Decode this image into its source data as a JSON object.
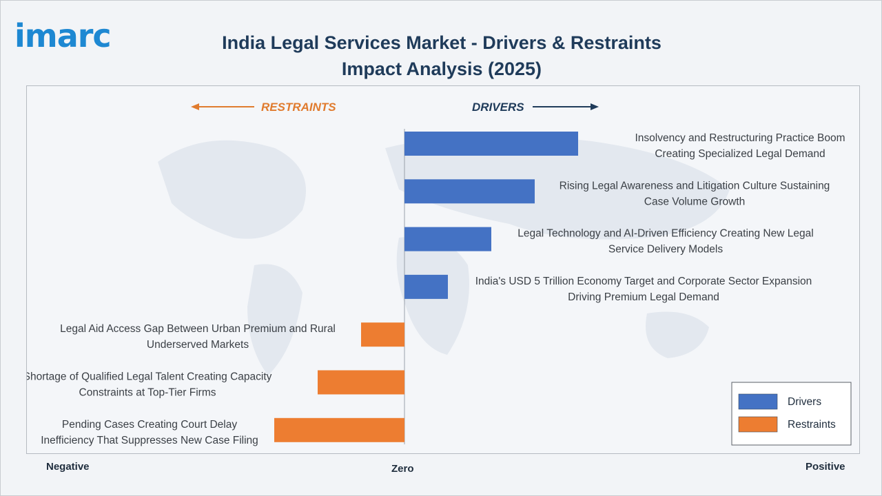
{
  "brand": {
    "logo_text": "imarc"
  },
  "title": "India Legal Services Market - Drivers & Restraints Impact Analysis (2025)",
  "colors": {
    "drivers": "#4472c4",
    "restraints": "#ed7d31",
    "title": "#1f3b5a",
    "restraints_header": "#e07b2e",
    "drivers_header": "#1f3b5a"
  },
  "headers": {
    "restraints": "RESTRAINTS",
    "drivers": "DRIVERS"
  },
  "axis": {
    "negative": "Negative",
    "zero": "Zero",
    "positive": "Positive"
  },
  "legend": [
    {
      "label": "Drivers",
      "color": "#4472c4"
    },
    {
      "label": "Restraints",
      "color": "#ed7d31"
    }
  ],
  "chart_data": {
    "type": "bar",
    "orientation": "horizontal",
    "xlim": [
      -3,
      4
    ],
    "grid": false,
    "legend_position": "bottom-right",
    "categories": [
      [
        "Insolvency and Restructuring Practice Boom",
        "Creating Specialized Legal Demand"
      ],
      [
        "Rising Legal Awareness and Litigation Culture Sustaining",
        "Case Volume Growth"
      ],
      [
        "Legal Technology and AI-Driven Efficiency Creating New Legal",
        "Service Delivery Models"
      ],
      [
        "India's USD 5 Trillion Economy Target and Corporate Sector Expansion",
        "Driving Premium Legal Demand"
      ],
      [
        "Legal Aid Access Gap Between Urban Premium and Rural",
        "Underserved Markets"
      ],
      [
        "Shortage of Qualified Legal Talent Creating Capacity",
        "Constraints at Top-Tier Firms"
      ],
      [
        "Pending Cases Creating Court Delay",
        "Inefficiency That Suppresses New Case Filing"
      ]
    ],
    "series": [
      {
        "name": "Drivers",
        "values": [
          4,
          3,
          2,
          1,
          null,
          null,
          null
        ]
      },
      {
        "name": "Restraints",
        "values": [
          null,
          null,
          null,
          null,
          -1,
          -2,
          -3
        ]
      }
    ]
  }
}
